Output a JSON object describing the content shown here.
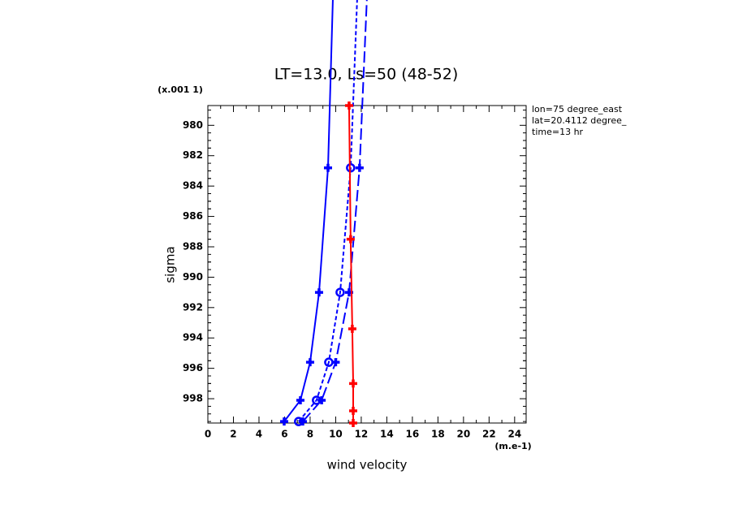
{
  "chart_data": {
    "type": "line",
    "title": "LT=13.0, Ls=50 (48-52)",
    "x_label": "wind velocity",
    "y_label": "sigma",
    "x_units": "(m.e-1)",
    "y_units": "(x.001 1)",
    "annotations": [
      "lon=75 degree_east",
      "lat=20.4112 degree_",
      "time=13 hr"
    ],
    "xlim": [
      0,
      24.9
    ],
    "ylim": [
      978.7,
      999.6
    ],
    "y_inverted": true,
    "xticks": [
      0,
      2,
      4,
      6,
      8,
      10,
      12,
      14,
      16,
      18,
      20,
      22,
      24
    ],
    "yticks": [
      980,
      982,
      984,
      986,
      988,
      990,
      992,
      994,
      996,
      998
    ],
    "series": [
      {
        "color": "#0000ff",
        "line": "solid",
        "marker": "plus",
        "x": [
          5.97,
          7.24,
          8.0,
          8.7,
          9.4,
          9.78
        ],
        "y": [
          999.5,
          998.1,
          995.6,
          991.0,
          982.8,
          971.7
        ]
      },
      {
        "color": "#0000ff",
        "line": "short",
        "marker": "circle",
        "x": [
          7.1,
          8.5,
          9.46,
          10.35,
          11.17,
          11.68
        ],
        "y": [
          999.5,
          998.1,
          995.6,
          991.0,
          982.8,
          971.7
        ]
      },
      {
        "color": "#0000ff",
        "line": "long",
        "marker": "plus",
        "x": [
          7.43,
          8.9,
          10.0,
          11.05,
          11.87,
          12.44
        ],
        "y": [
          999.5,
          998.1,
          995.6,
          991.0,
          982.8,
          971.7
        ]
      },
      {
        "color": "#ff0000",
        "line": "solid",
        "marker": "plus",
        "x": [
          11.05,
          11.17,
          11.3,
          11.37,
          11.37,
          11.37
        ],
        "y": [
          978.7,
          987.5,
          993.4,
          997.0,
          998.8,
          999.6
        ]
      }
    ]
  }
}
